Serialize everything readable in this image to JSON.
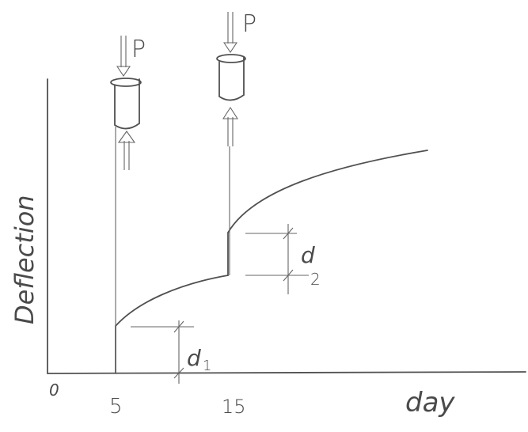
{
  "diagram": {
    "loads": [
      {
        "label": "P"
      },
      {
        "label": "P"
      }
    ],
    "axes": {
      "y_label": "Deflection",
      "x_label": "day",
      "origin": "0",
      "x_ticks": [
        "5",
        "15"
      ]
    },
    "annotations": [
      {
        "label": "d",
        "subscript": "1"
      },
      {
        "label": "d",
        "subscript": "2"
      }
    ]
  }
}
